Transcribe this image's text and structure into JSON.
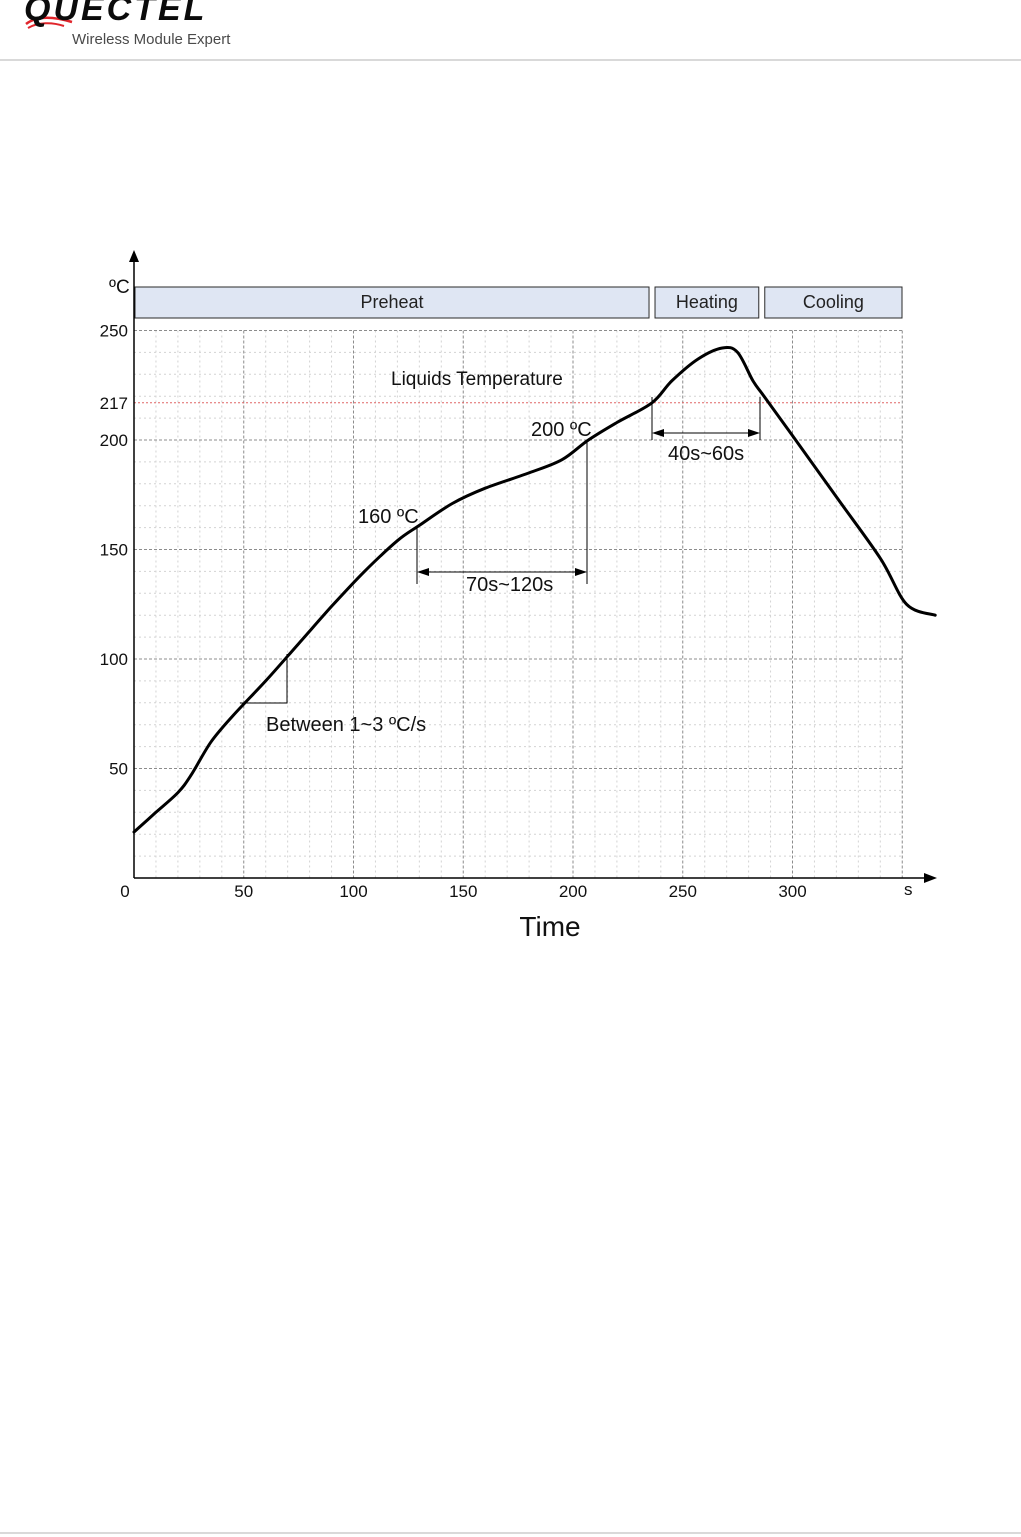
{
  "header": {
    "logo_text": "QUECTEL",
    "tagline": "Wireless Module Expert",
    "logo_color": "#e0252b"
  },
  "chart_data": {
    "type": "line",
    "title": "",
    "xlabel": "Time",
    "ylabel": "ºC",
    "x_unit_label": "s",
    "xlim": [
      0,
      350
    ],
    "ylim": [
      0,
      250
    ],
    "x_ticks": [
      0,
      50,
      100,
      150,
      200,
      250,
      300
    ],
    "x_tick_labels": [
      "0",
      "50",
      "100",
      "150",
      "200",
      "250",
      "300"
    ],
    "y_ticks": [
      50,
      100,
      150,
      200,
      217,
      250
    ],
    "y_tick_labels": [
      "50",
      "100",
      "150",
      "200",
      "217",
      "250"
    ],
    "grid": true,
    "phases": [
      {
        "label": "Preheat",
        "x_start": 0,
        "x_end": 236
      },
      {
        "label": "Heating",
        "x_start": 236,
        "x_end": 286
      },
      {
        "label": "Cooling",
        "x_start": 286,
        "x_end": 350
      }
    ],
    "series": [
      {
        "values": [
          {
            "x": 0,
            "y": 21
          },
          {
            "x": 10,
            "y": 30
          },
          {
            "x": 20,
            "y": 39
          },
          {
            "x": 26,
            "y": 47
          },
          {
            "x": 35,
            "y": 62
          },
          {
            "x": 45,
            "y": 74
          },
          {
            "x": 60,
            "y": 90
          },
          {
            "x": 75,
            "y": 107
          },
          {
            "x": 90,
            "y": 124
          },
          {
            "x": 105,
            "y": 140
          },
          {
            "x": 120,
            "y": 154
          },
          {
            "x": 130,
            "y": 161
          },
          {
            "x": 145,
            "y": 171
          },
          {
            "x": 160,
            "y": 178
          },
          {
            "x": 180,
            "y": 185
          },
          {
            "x": 195,
            "y": 191
          },
          {
            "x": 207,
            "y": 200
          },
          {
            "x": 220,
            "y": 208
          },
          {
            "x": 236,
            "y": 217
          },
          {
            "x": 245,
            "y": 227
          },
          {
            "x": 257,
            "y": 237
          },
          {
            "x": 268,
            "y": 242
          },
          {
            "x": 275,
            "y": 240
          },
          {
            "x": 282,
            "y": 227
          },
          {
            "x": 287,
            "y": 220
          },
          {
            "x": 300,
            "y": 202
          },
          {
            "x": 320,
            "y": 174
          },
          {
            "x": 340,
            "y": 146
          },
          {
            "x": 352,
            "y": 125
          },
          {
            "x": 365,
            "y": 120
          }
        ]
      }
    ],
    "reference_line": {
      "label": "Liquids Temperature",
      "y": 217,
      "color": "#e06666"
    },
    "annotations": [
      {
        "text": "200 ºC",
        "x": 207,
        "y": 200
      },
      {
        "text": "160 ºC",
        "x": 130,
        "y": 161
      },
      {
        "text": "70s~120s",
        "x_start": 130,
        "x_end": 207
      },
      {
        "text": "40s~60s",
        "x_start": 237,
        "x_end": 286
      },
      {
        "text": "Between 1~3 ºC/s"
      }
    ],
    "colors": {
      "phase_fill": "#dfe6f3",
      "curve": "#000000",
      "grid": "#8c8c8c"
    }
  }
}
